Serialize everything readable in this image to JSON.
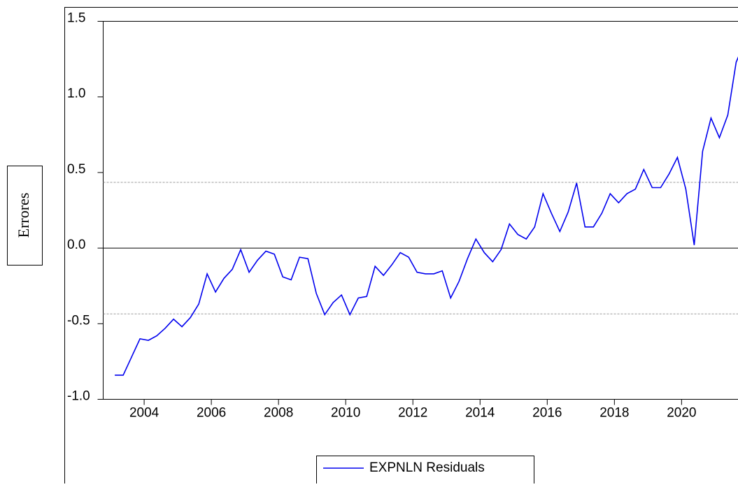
{
  "chart_data": {
    "type": "line",
    "y_label": "Errores",
    "x": [
      2003.125,
      2003.375,
      2003.625,
      2003.875,
      2004.125,
      2004.375,
      2004.625,
      2004.875,
      2005.125,
      2005.375,
      2005.625,
      2005.875,
      2006.125,
      2006.375,
      2006.625,
      2006.875,
      2007.125,
      2007.375,
      2007.625,
      2007.875,
      2008.125,
      2008.375,
      2008.625,
      2008.875,
      2009.125,
      2009.375,
      2009.625,
      2009.875,
      2010.125,
      2010.375,
      2010.625,
      2010.875,
      2011.125,
      2011.375,
      2011.625,
      2011.875,
      2012.125,
      2012.375,
      2012.625,
      2012.875,
      2013.125,
      2013.375,
      2013.625,
      2013.875,
      2014.125,
      2014.375,
      2014.625,
      2014.875,
      2015.125,
      2015.375,
      2015.625,
      2015.875,
      2016.125,
      2016.375,
      2016.625,
      2016.875,
      2017.125,
      2017.375,
      2017.625,
      2017.875,
      2018.125,
      2018.375,
      2018.625,
      2018.875,
      2019.125,
      2019.375,
      2019.625,
      2019.875,
      2020.125,
      2020.375,
      2020.625,
      2020.875,
      2021.125,
      2021.375,
      2021.625,
      2021.875
    ],
    "series": [
      {
        "name": "EXPNLN Residuals",
        "color": "#0000ee",
        "values": [
          -0.84,
          -0.84,
          -0.72,
          -0.6,
          -0.61,
          -0.58,
          -0.53,
          -0.47,
          -0.52,
          -0.46,
          -0.37,
          -0.17,
          -0.29,
          -0.2,
          -0.14,
          -0.01,
          -0.16,
          -0.08,
          -0.02,
          -0.04,
          -0.19,
          -0.21,
          -0.06,
          -0.07,
          -0.3,
          -0.44,
          -0.36,
          -0.31,
          -0.44,
          -0.33,
          -0.32,
          -0.12,
          -0.18,
          -0.11,
          -0.03,
          -0.06,
          -0.16,
          -0.17,
          -0.17,
          -0.15,
          -0.33,
          -0.22,
          -0.07,
          0.06,
          -0.03,
          -0.09,
          -0.01,
          0.16,
          0.09,
          0.06,
          0.14,
          0.36,
          0.23,
          0.11,
          0.24,
          0.43,
          0.14,
          0.14,
          0.23,
          0.36,
          0.3,
          0.36,
          0.39,
          0.52,
          0.4,
          0.4,
          0.49,
          0.6,
          0.39,
          0.02,
          0.64,
          0.86,
          0.73,
          0.88,
          1.23,
          1.36
        ]
      }
    ],
    "xlim": [
      2002.78,
      2021.95
    ],
    "xticks": [
      2004,
      2006,
      2008,
      2010,
      2012,
      2014,
      2016,
      2018,
      2020
    ],
    "ylim": [
      -1.0,
      1.5
    ],
    "yticks": [
      {
        "value": -1.0,
        "label": "-1.0"
      },
      -0.5,
      {
        "value": 0.0,
        "label": "0.0"
      },
      0.5,
      {
        "value": 1.0,
        "label": "1.0"
      },
      1.5
    ],
    "bands": [
      -0.435,
      0.435
    ]
  }
}
